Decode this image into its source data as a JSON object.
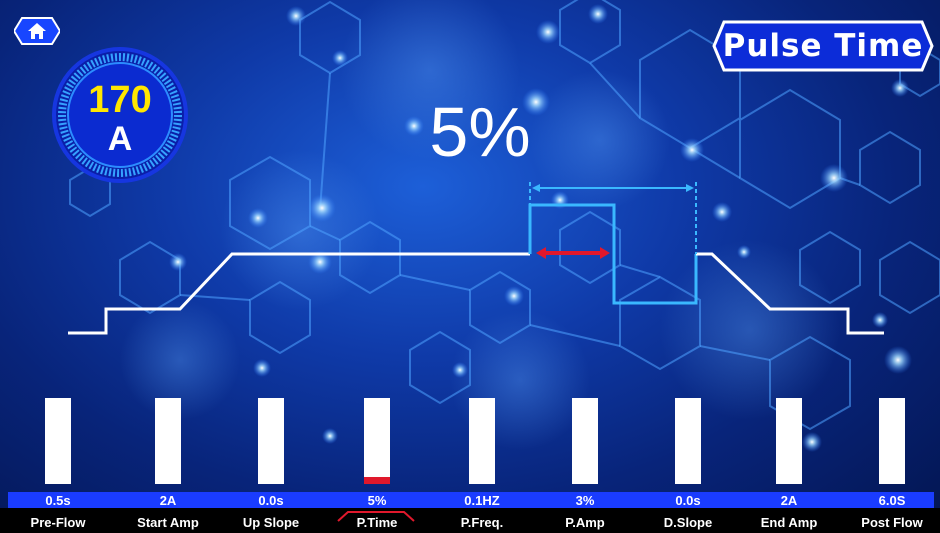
{
  "header": {
    "home_icon": "home-icon",
    "mode_title": "Pulse Time"
  },
  "current": {
    "value": "170",
    "unit": "A"
  },
  "selected_parameter": {
    "name": "P.Time",
    "display_value": "5%",
    "level": 0.08
  },
  "parameters": [
    {
      "label": "Pre-Flow",
      "value": "0.5s",
      "level": 0
    },
    {
      "label": "Start Amp",
      "value": "2A",
      "level": 0
    },
    {
      "label": "Up Slope",
      "value": "0.0s",
      "level": 0
    },
    {
      "label": "P.Time",
      "value": "5%",
      "level": 0.08
    },
    {
      "label": "P.Freq.",
      "value": "0.1HZ",
      "level": 0
    },
    {
      "label": "P.Amp",
      "value": "3%",
      "level": 0
    },
    {
      "label": "D.Slope",
      "value": "0.0s",
      "level": 0
    },
    {
      "label": "End Amp",
      "value": "2A",
      "level": 0
    },
    {
      "label": "Post Flow",
      "value": "6.0S",
      "level": 0
    }
  ],
  "colors": {
    "accent_yellow": "#ffe600",
    "selected_red": "#e0182c",
    "value_bar_blue": "#1a3cff",
    "pulse_cyan": "#3ab8ff",
    "wave_white": "#ffffff"
  }
}
